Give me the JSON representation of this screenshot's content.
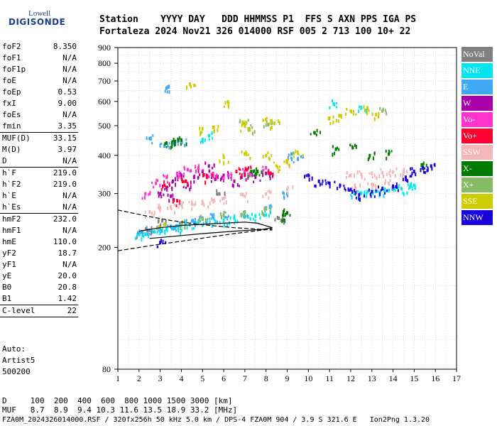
{
  "logo": {
    "line1": "Lowell",
    "line2": "DIGISONDE"
  },
  "header": {
    "line1": "Station    YYYY DAY   DDD HHMMSS P1  FFS S AXN PPS IGA PS",
    "line2": "Fortaleza 2024 Nov21 326 014000 RSF 005 2 713 100 10+ 22"
  },
  "params": [
    {
      "label": "foF2",
      "value": "8.350"
    },
    {
      "label": "foF1",
      "value": "N/A"
    },
    {
      "label": "foF1p",
      "value": "N/A"
    },
    {
      "label": "foE",
      "value": "N/A"
    },
    {
      "label": "foEp",
      "value": "0.53"
    },
    {
      "label": "fxI",
      "value": "9.00"
    },
    {
      "label": "foEs",
      "value": "N/A"
    },
    {
      "label": "fmin",
      "value": "3.35"
    },
    {
      "sep": true
    },
    {
      "label": "MUF(D)",
      "value": "33.15"
    },
    {
      "label": "M(D)",
      "value": "3.97"
    },
    {
      "label": "D",
      "value": "N/A"
    },
    {
      "sep": true
    },
    {
      "label": "h`F",
      "value": "219.0"
    },
    {
      "label": "h`F2",
      "value": "219.0"
    },
    {
      "label": "h`E",
      "value": "N/A"
    },
    {
      "label": "h`Es",
      "value": "N/A"
    },
    {
      "sep": true
    },
    {
      "label": "hmF2",
      "value": "232.0"
    },
    {
      "label": "hmF1",
      "value": "N/A"
    },
    {
      "label": "hmE",
      "value": "110.0"
    },
    {
      "label": "yF2",
      "value": "18.7"
    },
    {
      "label": "yF1",
      "value": "N/A"
    },
    {
      "label": "yE",
      "value": "20.0"
    },
    {
      "label": "B0",
      "value": "20.8"
    },
    {
      "label": "B1",
      "value": "1.42"
    },
    {
      "sep": true
    },
    {
      "label": "C-level",
      "value": "22"
    },
    {
      "sep": true
    }
  ],
  "auto": {
    "line1": "Auto:",
    "line2": "Artist5",
    "line3": "500200"
  },
  "legend": [
    {
      "label": "NoVal",
      "color": "#808080"
    },
    {
      "label": "NNE",
      "color": "#00e5ee"
    },
    {
      "label": "E",
      "color": "#3fa9f5"
    },
    {
      "label": "W",
      "color": "#aa00aa"
    },
    {
      "label": "Vo-",
      "color": "#ff33cc"
    },
    {
      "label": "Vo+",
      "color": "#ff0033"
    },
    {
      "label": "SSW",
      "color": "#f4b6b6"
    },
    {
      "label": "X-",
      "color": "#007a00"
    },
    {
      "label": "X+",
      "color": "#88bb66"
    },
    {
      "label": "SSE",
      "color": "#cccc00"
    },
    {
      "label": "NNW",
      "color": "#1a00dd"
    }
  ],
  "bottom": {
    "d_line": "D     100  200  400  600  800 1000 1500 3000 [km]",
    "muf_line": "MUF   8.7  8.9  9.4 10.3 11.6 13.5 18.9 33.2 [MHz]",
    "footer": "FZA0M_2024326014000.RSF / 320fx256h 50 kHz 5.0 km / DPS-4 FZA0M 904 / 3.9 S 321.6 E   Ion2Png 1.3.20"
  },
  "chart_data": {
    "type": "scatter",
    "xlim": [
      1,
      17
    ],
    "ylim": [
      80,
      900
    ],
    "x_ticks": [
      "1",
      "2",
      "3",
      "4",
      "5",
      "6",
      "7",
      "8",
      "9",
      "10",
      "11",
      "12",
      "13",
      "14",
      "15",
      "16",
      "17"
    ],
    "y_ticks": [
      "80",
      "200",
      "300",
      "400",
      "500",
      "600",
      "700",
      "800",
      "900"
    ],
    "y_scale": "log",
    "grid": true,
    "series": [
      {
        "name": "NNE",
        "color": "#00e5ee",
        "points": [
          [
            2.0,
            222
          ],
          [
            2.3,
            222
          ],
          [
            2.6,
            225
          ],
          [
            3.0,
            228
          ],
          [
            3.3,
            230
          ],
          [
            3.7,
            232
          ],
          [
            4.0,
            236
          ],
          [
            4.4,
            238
          ],
          [
            4.8,
            240
          ],
          [
            5.2,
            242
          ],
          [
            5.6,
            244
          ],
          [
            6.0,
            246
          ],
          [
            6.5,
            250
          ],
          [
            7.0,
            252
          ],
          [
            7.5,
            254
          ],
          [
            8.0,
            256
          ],
          [
            12.2,
            300
          ],
          [
            12.5,
            302
          ],
          [
            12.8,
            305
          ],
          [
            13.2,
            306
          ],
          [
            13.6,
            308
          ],
          [
            14.0,
            310
          ],
          [
            14.4,
            312
          ],
          [
            14.8,
            316
          ],
          [
            15.0,
            320
          ],
          [
            5.0,
            450
          ],
          [
            5.3,
            465
          ],
          [
            11.2,
            590
          ],
          [
            12.5,
            575
          ]
        ]
      },
      {
        "name": "E",
        "color": "#3fa9f5",
        "points": [
          [
            2.1,
            225
          ],
          [
            2.5,
            228
          ],
          [
            3.0,
            232
          ],
          [
            3.5,
            235
          ],
          [
            4.0,
            240
          ],
          [
            4.5,
            245
          ],
          [
            5.0,
            250
          ],
          [
            5.5,
            252
          ],
          [
            6.0,
            256
          ],
          [
            7.0,
            262
          ],
          [
            8.0,
            270
          ],
          [
            9.0,
            300
          ],
          [
            3.2,
            430
          ],
          [
            3.6,
            440
          ],
          [
            4.0,
            445
          ],
          [
            2.5,
            455
          ],
          [
            3.3,
            665
          ],
          [
            9.2,
            405
          ],
          [
            9.5,
            390
          ]
        ]
      },
      {
        "name": "W",
        "color": "#aa00aa",
        "points": [
          [
            3.0,
            300
          ],
          [
            3.3,
            315
          ],
          [
            3.6,
            330
          ],
          [
            4.0,
            345
          ],
          [
            4.3,
            320
          ],
          [
            4.6,
            340
          ],
          [
            5.0,
            355
          ],
          [
            5.3,
            370
          ],
          [
            5.6,
            335
          ],
          [
            6.0,
            345
          ],
          [
            6.5,
            330
          ],
          [
            7.0,
            345
          ],
          [
            7.5,
            340
          ],
          [
            8.0,
            350
          ],
          [
            3.5,
            295
          ]
        ]
      },
      {
        "name": "Vo-",
        "color": "#ff33cc",
        "points": [
          [
            2.3,
            300
          ],
          [
            2.8,
            325
          ],
          [
            3.3,
            340
          ],
          [
            3.8,
            350
          ],
          [
            4.3,
            360
          ],
          [
            4.8,
            365
          ],
          [
            5.5,
            350
          ],
          [
            6.2,
            345
          ],
          [
            7.0,
            355
          ],
          [
            8.0,
            365
          ]
        ]
      },
      {
        "name": "Vo+",
        "color": "#ff0033",
        "points": [
          [
            3.2,
            320
          ],
          [
            4.2,
            330
          ],
          [
            5.2,
            340
          ],
          [
            6.6,
            355
          ],
          [
            7.1,
            360
          ],
          [
            8.2,
            350
          ],
          [
            3.8,
            285
          ]
        ]
      },
      {
        "name": "SSW",
        "color": "#f4b6b6",
        "points": [
          [
            2.5,
            262
          ],
          [
            3.0,
            270
          ],
          [
            3.5,
            272
          ],
          [
            4.0,
            276
          ],
          [
            4.5,
            278
          ],
          [
            5.0,
            282
          ],
          [
            5.5,
            285
          ],
          [
            6.0,
            290
          ],
          [
            7.0,
            295
          ],
          [
            8.0,
            300
          ],
          [
            9.0,
            310
          ],
          [
            12.0,
            345
          ],
          [
            12.5,
            348
          ],
          [
            13.0,
            350
          ],
          [
            13.5,
            352
          ],
          [
            14.0,
            354
          ],
          [
            14.5,
            355
          ],
          [
            12.2,
            318
          ],
          [
            13.0,
            322
          ],
          [
            13.8,
            325
          ]
        ]
      },
      {
        "name": "X-",
        "color": "#007a00",
        "points": [
          [
            3.3,
            440
          ],
          [
            3.7,
            445
          ],
          [
            4.0,
            450
          ],
          [
            7.3,
            355
          ],
          [
            7.6,
            355
          ],
          [
            12.1,
            425
          ],
          [
            12.9,
            400
          ],
          [
            8.8,
            255
          ],
          [
            9.0,
            260
          ],
          [
            10.3,
            475
          ],
          [
            11.3,
            420
          ],
          [
            13.8,
            405
          ],
          [
            15.4,
            373
          ]
        ]
      },
      {
        "name": "X+",
        "color": "#88bb66",
        "points": [
          [
            4.0,
            240
          ],
          [
            5.0,
            248
          ],
          [
            6.0,
            255
          ],
          [
            7.0,
            262
          ],
          [
            8.0,
            268
          ],
          [
            6.9,
            510
          ],
          [
            8.1,
            505
          ],
          [
            7.2,
            490
          ],
          [
            13.5,
            560
          ]
        ]
      },
      {
        "name": "SSE",
        "color": "#cccc00",
        "points": [
          [
            5.0,
            490
          ],
          [
            5.5,
            495
          ],
          [
            6.9,
            515
          ],
          [
            7.0,
            500
          ],
          [
            8.0,
            525
          ],
          [
            8.4,
            510
          ],
          [
            6.0,
            395
          ],
          [
            7.0,
            405
          ],
          [
            8.0,
            400
          ],
          [
            8.5,
            370
          ],
          [
            9.0,
            385
          ],
          [
            9.5,
            410
          ],
          [
            11.0,
            530
          ],
          [
            11.5,
            540
          ],
          [
            12.0,
            560
          ],
          [
            12.8,
            570
          ],
          [
            13.2,
            545
          ],
          [
            3.0,
            235
          ],
          [
            6.2,
            600
          ],
          [
            4.4,
            685
          ]
        ]
      },
      {
        "name": "NNW",
        "color": "#1a00dd",
        "points": [
          [
            10.5,
            330
          ],
          [
            11.0,
            325
          ],
          [
            11.5,
            320
          ],
          [
            12.0,
            310
          ],
          [
            12.4,
            298
          ],
          [
            13.0,
            305
          ],
          [
            13.5,
            312
          ],
          [
            14.0,
            318
          ],
          [
            14.6,
            340
          ],
          [
            15.0,
            355
          ],
          [
            15.4,
            365
          ],
          [
            15.8,
            370
          ],
          [
            3.0,
            208
          ],
          [
            10.0,
            345
          ]
        ]
      },
      {
        "name": "NoVal",
        "color": "#808080",
        "points": [
          [
            2.4,
            228
          ],
          [
            3.1,
            245
          ],
          [
            5.8,
            300
          ],
          [
            8.6,
            250
          ]
        ]
      }
    ]
  }
}
